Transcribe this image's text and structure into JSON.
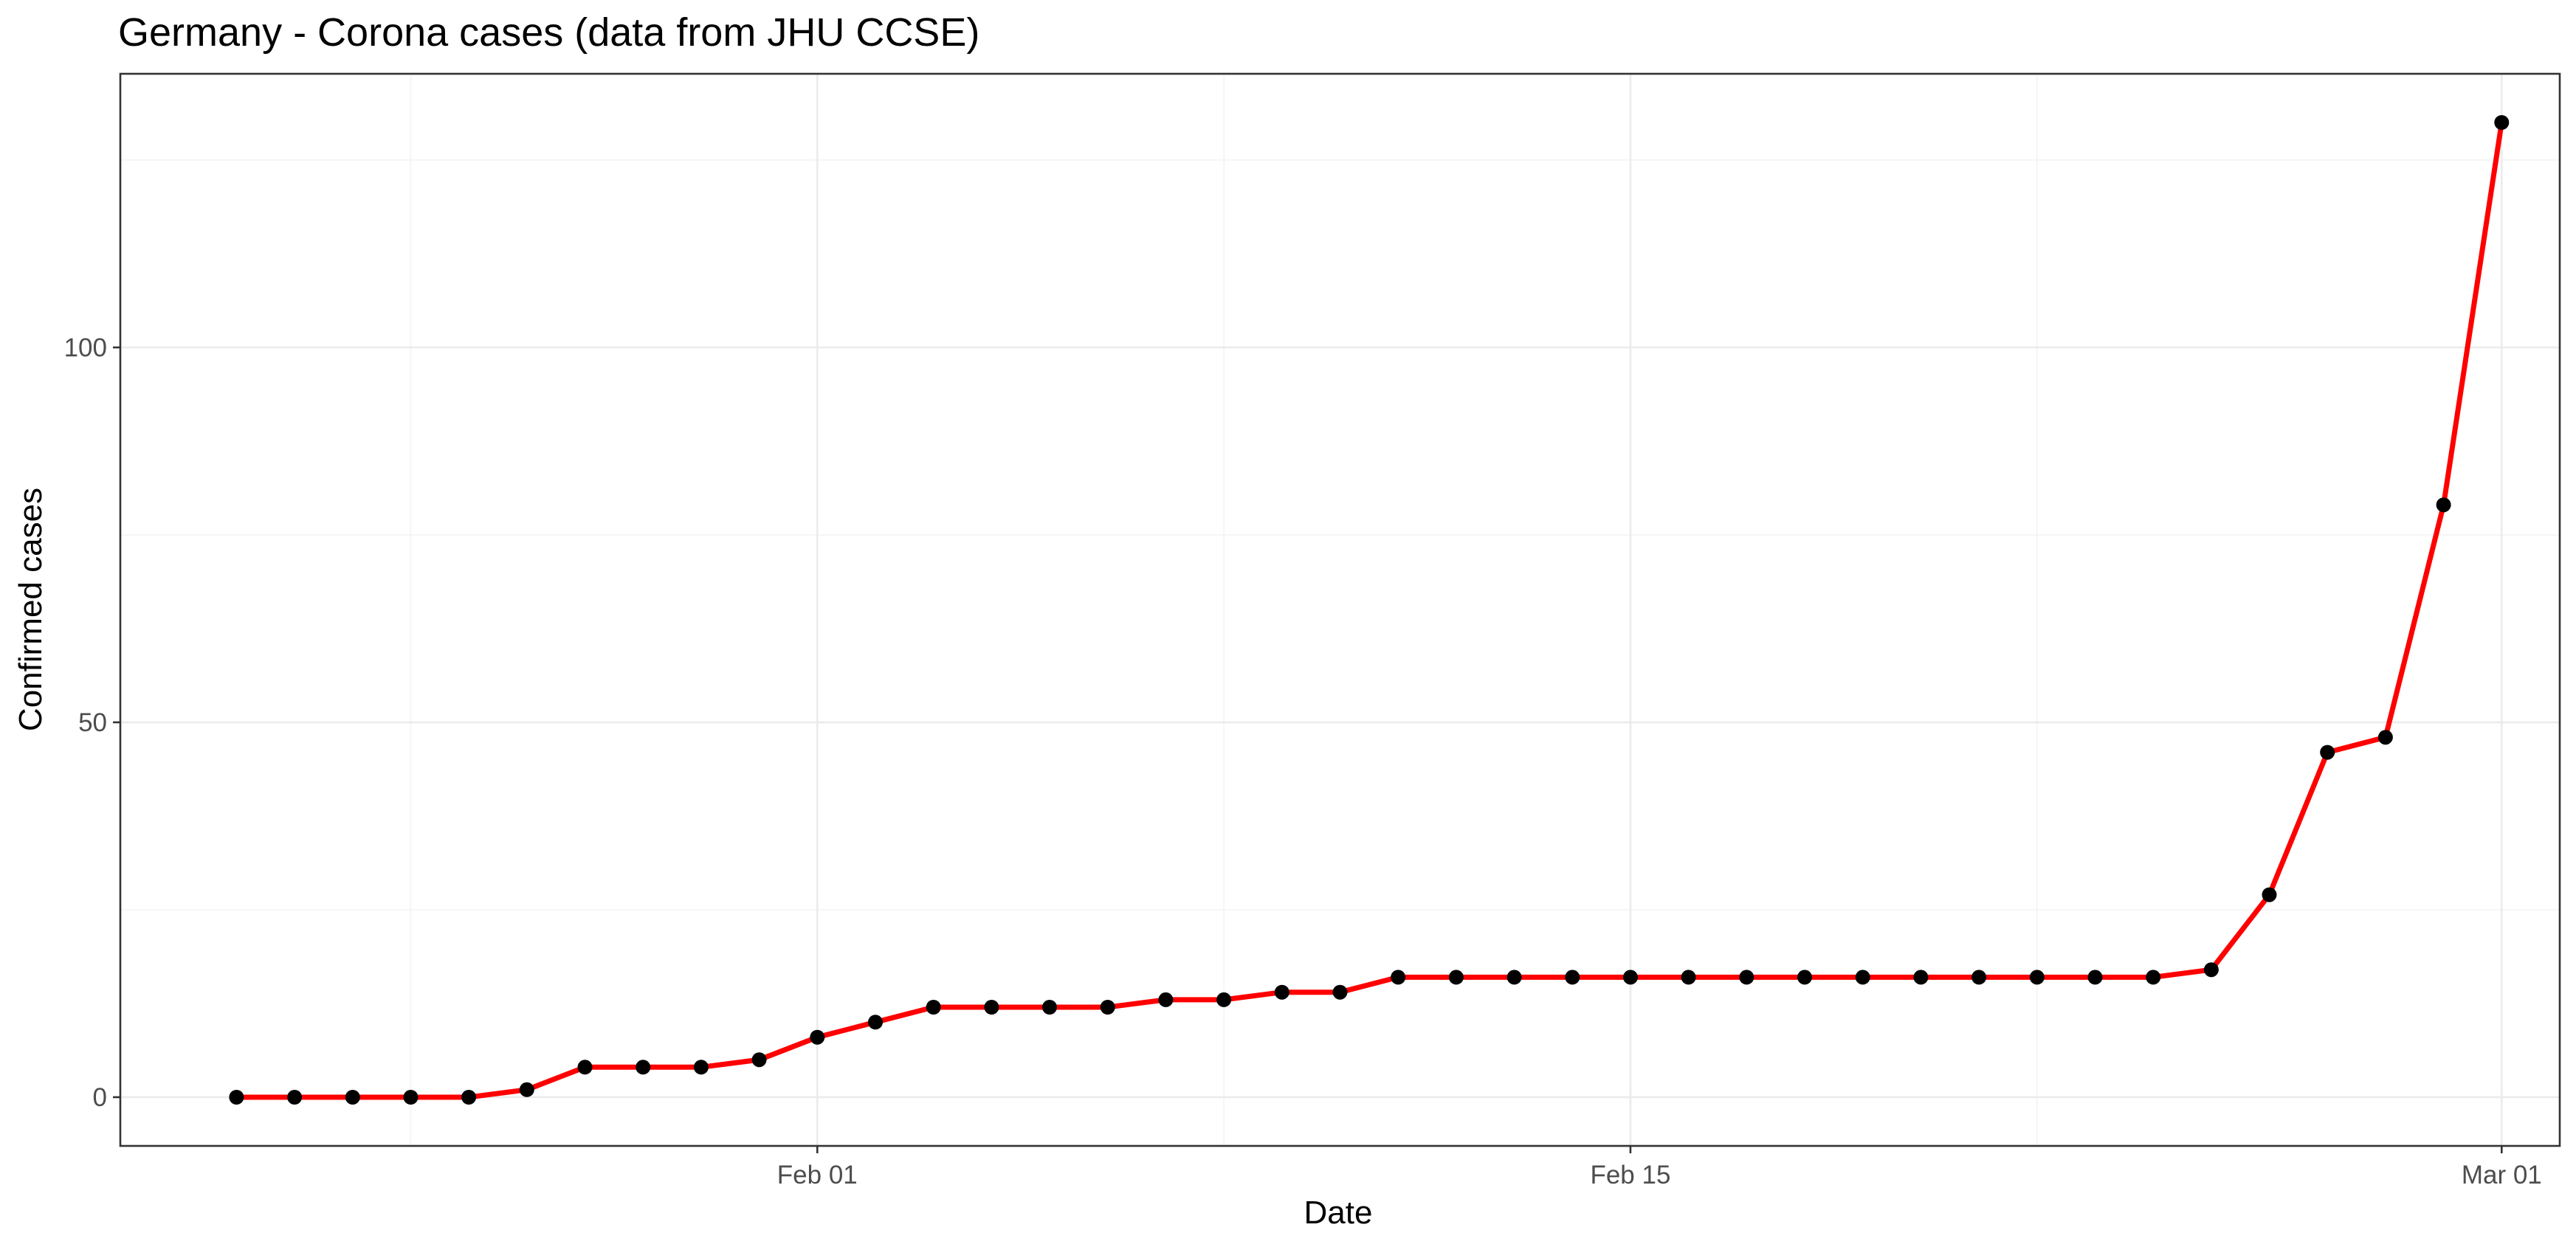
{
  "chart_data": {
    "type": "line",
    "title": "Germany - Corona cases (data from JHU CCSE)",
    "xlabel": "Date",
    "ylabel": "Confirmed cases",
    "x_type": "date",
    "xlim": [
      "2020-01-20",
      "2020-03-02"
    ],
    "ylim": [
      -6.5,
      136.5
    ],
    "x_major_ticks": [
      {
        "value": "2020-02-01",
        "label": "Feb 01"
      },
      {
        "value": "2020-02-15",
        "label": "Feb 15"
      },
      {
        "value": "2020-03-01",
        "label": "Mar 01"
      }
    ],
    "x_minor_ticks": [
      "2020-01-25",
      "2020-02-08",
      "2020-02-22"
    ],
    "y_major_ticks": [
      {
        "value": 0,
        "label": "0"
      },
      {
        "value": 50,
        "label": "50"
      },
      {
        "value": 100,
        "label": "100"
      }
    ],
    "y_minor_ticks": [
      25,
      75,
      125
    ],
    "grid": true,
    "legend": "none",
    "line_color": "#ff0000",
    "point_color": "#000000",
    "x": [
      "2020-01-22",
      "2020-01-23",
      "2020-01-24",
      "2020-01-25",
      "2020-01-26",
      "2020-01-27",
      "2020-01-28",
      "2020-01-29",
      "2020-01-30",
      "2020-01-31",
      "2020-02-01",
      "2020-02-02",
      "2020-02-03",
      "2020-02-04",
      "2020-02-05",
      "2020-02-06",
      "2020-02-07",
      "2020-02-08",
      "2020-02-09",
      "2020-02-10",
      "2020-02-11",
      "2020-02-12",
      "2020-02-13",
      "2020-02-14",
      "2020-02-15",
      "2020-02-16",
      "2020-02-17",
      "2020-02-18",
      "2020-02-19",
      "2020-02-20",
      "2020-02-21",
      "2020-02-22",
      "2020-02-23",
      "2020-02-24",
      "2020-02-25",
      "2020-02-26",
      "2020-02-27",
      "2020-02-28",
      "2020-02-29",
      "2020-03-01"
    ],
    "series": [
      {
        "values": [
          0,
          0,
          0,
          0,
          0,
          1,
          4,
          4,
          4,
          5,
          8,
          10,
          12,
          12,
          12,
          12,
          13,
          13,
          14,
          14,
          16,
          16,
          16,
          16,
          16,
          16,
          16,
          16,
          16,
          16,
          16,
          16,
          16,
          16,
          17,
          27,
          46,
          48,
          79,
          130
        ]
      }
    ]
  }
}
